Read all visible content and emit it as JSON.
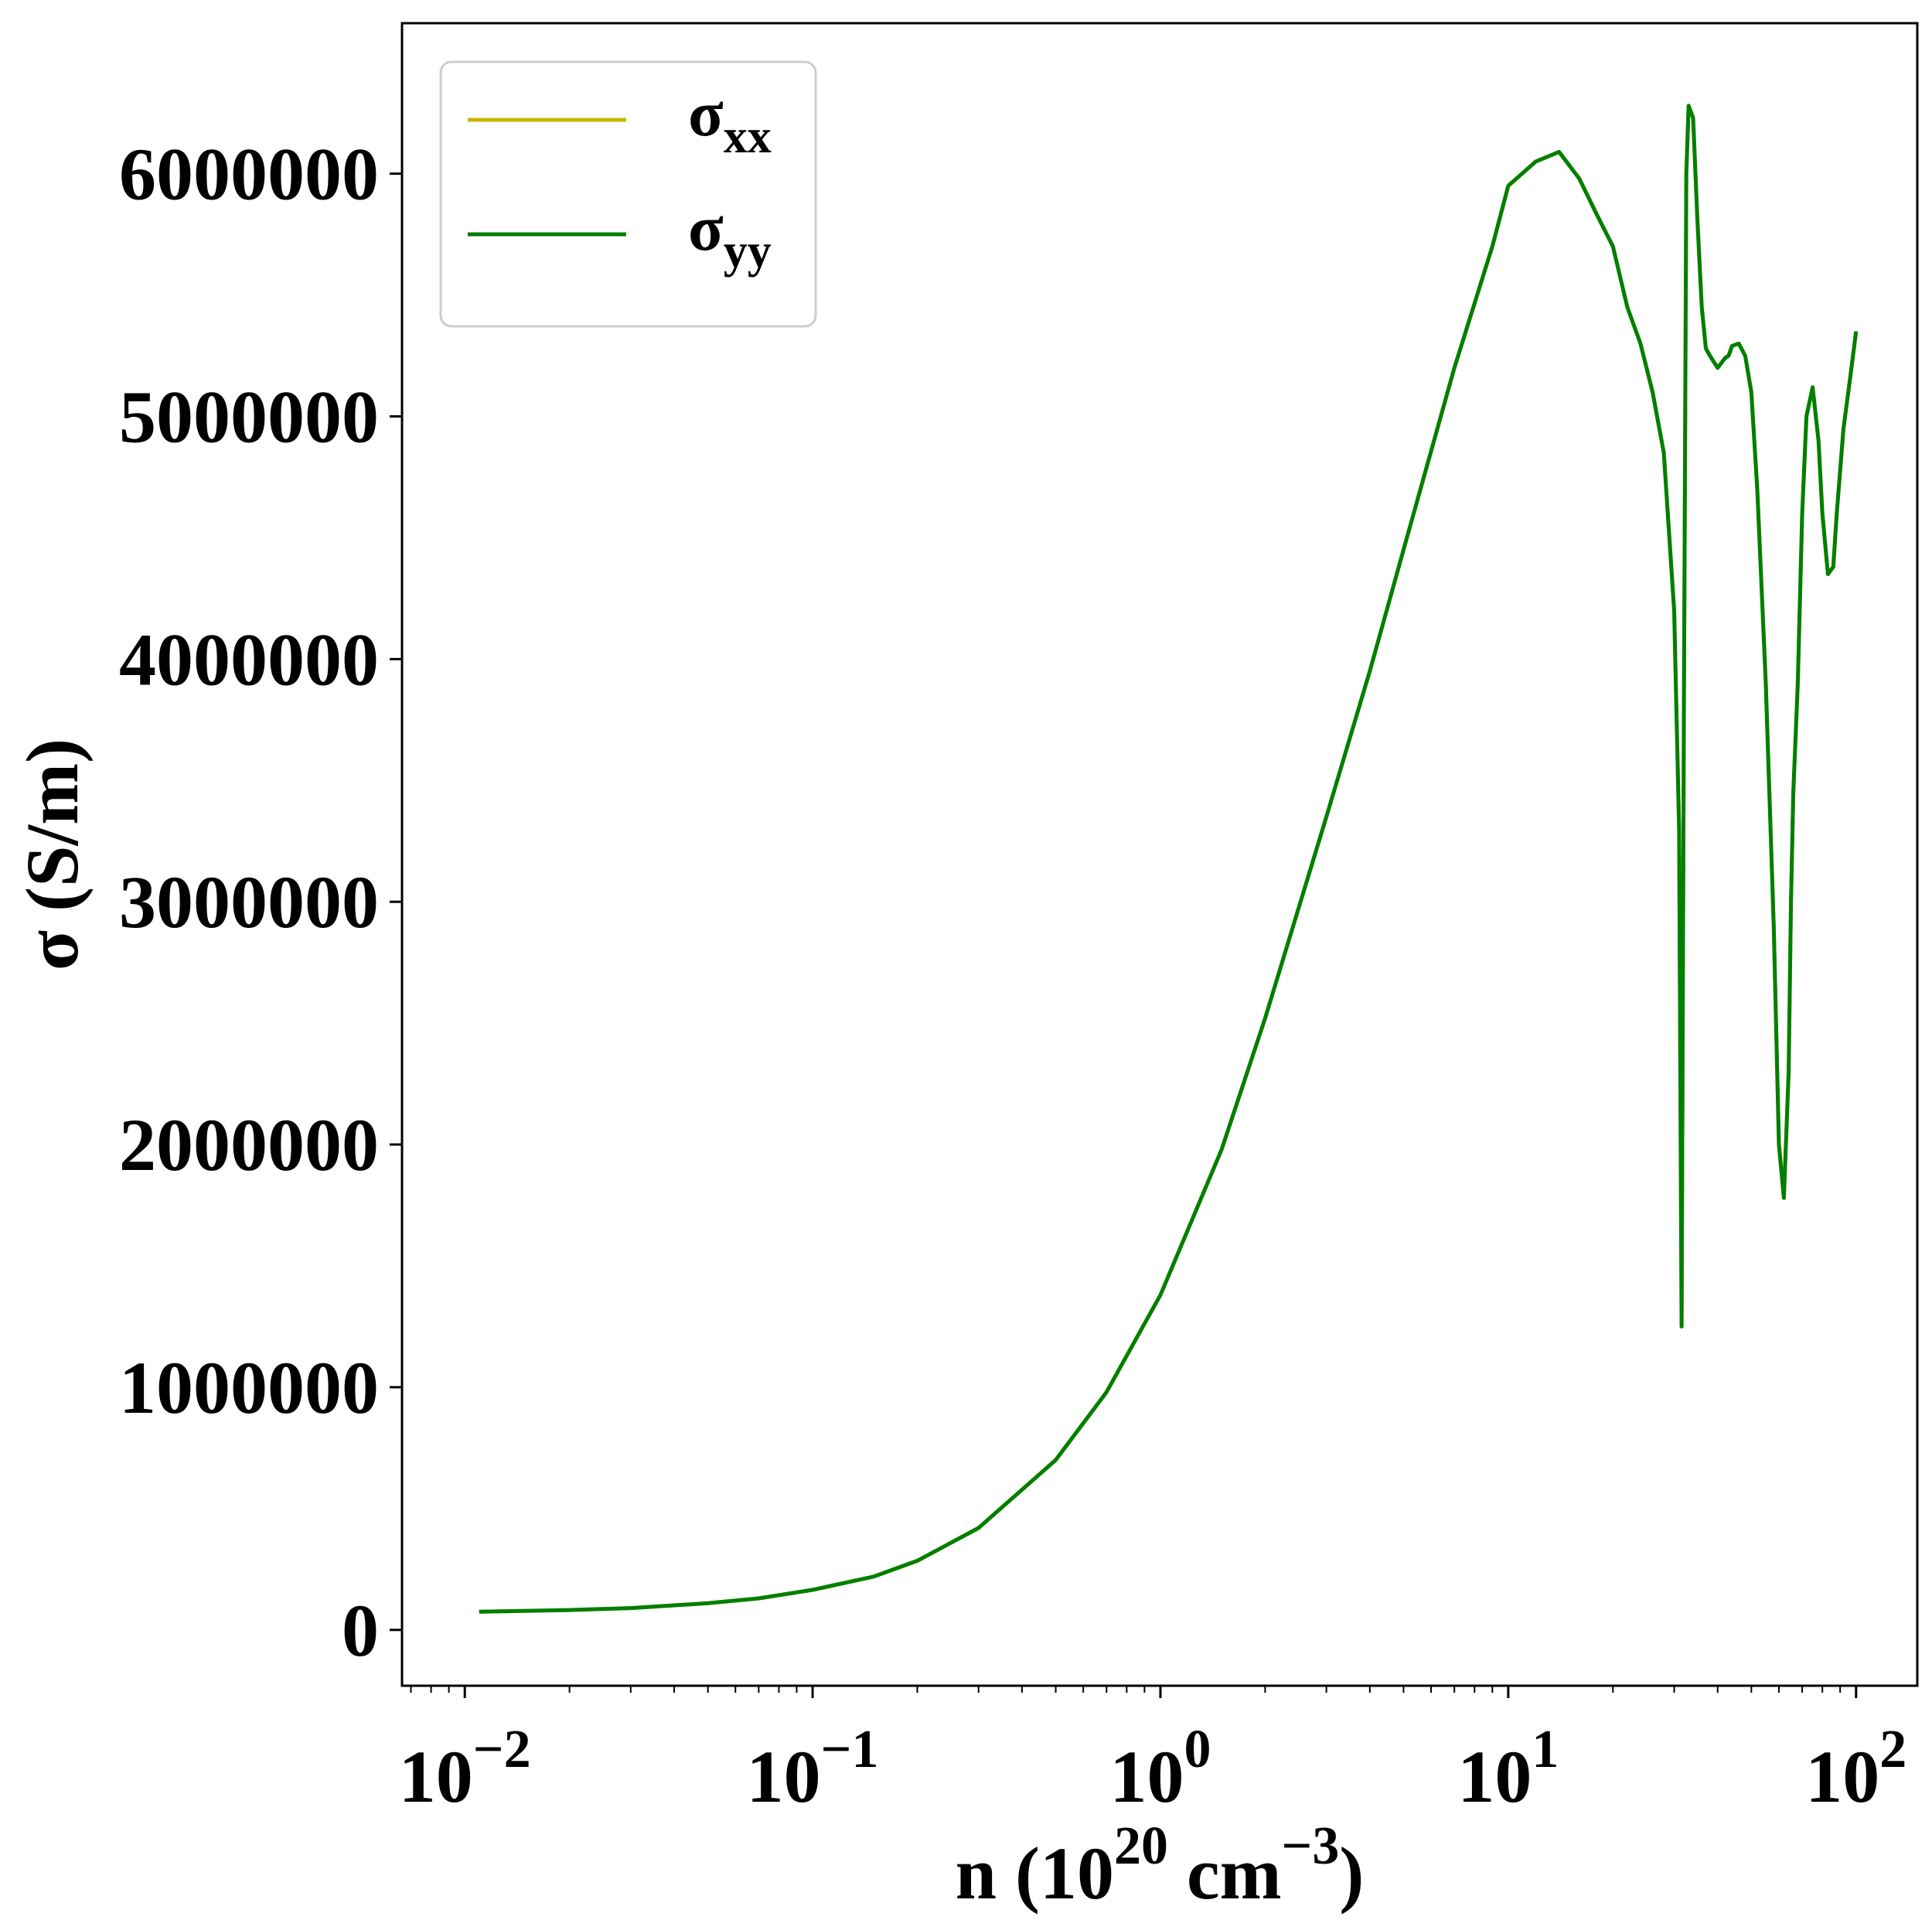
{
  "chart_data": {
    "type": "line",
    "xscale": "log",
    "xlim": [
      0.0066,
      150
    ],
    "ylim": [
      -230000,
      6620000
    ],
    "grid": false,
    "legend_position": "top-left",
    "xlabel": {
      "main": "n (10",
      "exp1": "20",
      "mid": " cm",
      "exp2": "−3",
      "tail": ")"
    },
    "ylabel": "σ (S/m)",
    "x_ticks": [
      {
        "value": 0.01,
        "base": "10",
        "exp": "−2"
      },
      {
        "value": 0.1,
        "base": "10",
        "exp": "−1"
      },
      {
        "value": 1,
        "base": "10",
        "exp": "0"
      },
      {
        "value": 10,
        "base": "10",
        "exp": "1"
      },
      {
        "value": 100,
        "base": "10",
        "exp": "2"
      }
    ],
    "y_ticks": [
      {
        "value": 0,
        "label": "0"
      },
      {
        "value": 1000000,
        "label": "1000000"
      },
      {
        "value": 2000000,
        "label": "2000000"
      },
      {
        "value": 3000000,
        "label": "3000000"
      },
      {
        "value": 4000000,
        "label": "4000000"
      },
      {
        "value": 5000000,
        "label": "5000000"
      },
      {
        "value": 6000000,
        "label": "6000000"
      }
    ],
    "series": [
      {
        "name": "σxx",
        "symbol": "σ",
        "subscript": "xx",
        "color": "#c8b400",
        "x": [
          0.011,
          0.02,
          0.03,
          0.05,
          0.07,
          0.1,
          0.15,
          0.2,
          0.3,
          0.5,
          0.7,
          1.0,
          1.5,
          2.0,
          3.0,
          4.0,
          5.0,
          7.0,
          9.0,
          10.0,
          12.0,
          14.0,
          16.0,
          18.0,
          20.0,
          22.0,
          24.0,
          26.0,
          28.0,
          30.0,
          31.0,
          31.5,
          32.0,
          32.5,
          33.0,
          34.0,
          35.0,
          36.0,
          37.0,
          38.0,
          40.0,
          42.0,
          43.0,
          44.0,
          46.0,
          48.0,
          50.0,
          52.0,
          55.0,
          58.0,
          60.0,
          62.0,
          64.0,
          65.0,
          66.0,
          68.0,
          70.0,
          72.0,
          75.0,
          78.0,
          80.0,
          83.0,
          86.0,
          88.0,
          92.0,
          96.0,
          100.0
        ],
        "y": [
          75000,
          82000,
          90000,
          110000,
          130000,
          165000,
          220000,
          285000,
          420000,
          700000,
          980000,
          1380000,
          1980000,
          2520000,
          3350000,
          3950000,
          4450000,
          5200000,
          5700000,
          5950000,
          6050000,
          6090000,
          5980000,
          5830000,
          5700000,
          5450000,
          5300000,
          5100000,
          4850000,
          4200000,
          3300000,
          1250000,
          3800000,
          6000000,
          6280000,
          6230000,
          5800000,
          5450000,
          5280000,
          5250000,
          5200000,
          5240000,
          5250000,
          5290000,
          5300000,
          5250000,
          5100000,
          4700000,
          3900000,
          2900000,
          2000000,
          1780000,
          2300000,
          3000000,
          3450000,
          3900000,
          4600000,
          5000000,
          5120000,
          4900000,
          4600000,
          4350000,
          4380000,
          4600000,
          4950000,
          5150000,
          5350000
        ]
      },
      {
        "name": "σyy",
        "symbol": "σ",
        "subscript": "yy",
        "color": "#007f00",
        "x": [
          0.011,
          0.02,
          0.03,
          0.05,
          0.07,
          0.1,
          0.15,
          0.2,
          0.3,
          0.5,
          0.7,
          1.0,
          1.5,
          2.0,
          3.0,
          4.0,
          5.0,
          7.0,
          9.0,
          10.0,
          12.0,
          14.0,
          16.0,
          18.0,
          20.0,
          22.0,
          24.0,
          26.0,
          28.0,
          30.0,
          31.0,
          31.5,
          32.0,
          32.5,
          33.0,
          34.0,
          35.0,
          36.0,
          37.0,
          38.0,
          40.0,
          42.0,
          43.0,
          44.0,
          46.0,
          48.0,
          50.0,
          52.0,
          55.0,
          58.0,
          60.0,
          62.0,
          64.0,
          65.0,
          66.0,
          68.0,
          70.0,
          72.0,
          75.0,
          78.0,
          80.0,
          83.0,
          86.0,
          88.0,
          92.0,
          96.0,
          100.0
        ],
        "y": [
          75000,
          82000,
          90000,
          110000,
          130000,
          165000,
          220000,
          285000,
          420000,
          700000,
          980000,
          1380000,
          1980000,
          2520000,
          3350000,
          3950000,
          4450000,
          5200000,
          5700000,
          5950000,
          6050000,
          6090000,
          5980000,
          5830000,
          5700000,
          5450000,
          5300000,
          5100000,
          4850000,
          4200000,
          3300000,
          1250000,
          3800000,
          6000000,
          6280000,
          6230000,
          5800000,
          5450000,
          5280000,
          5250000,
          5200000,
          5240000,
          5250000,
          5290000,
          5300000,
          5250000,
          5100000,
          4700000,
          3900000,
          2900000,
          2000000,
          1780000,
          2300000,
          3000000,
          3450000,
          3900000,
          4600000,
          5000000,
          5120000,
          4900000,
          4600000,
          4350000,
          4380000,
          4600000,
          4950000,
          5150000,
          5350000
        ]
      }
    ]
  }
}
